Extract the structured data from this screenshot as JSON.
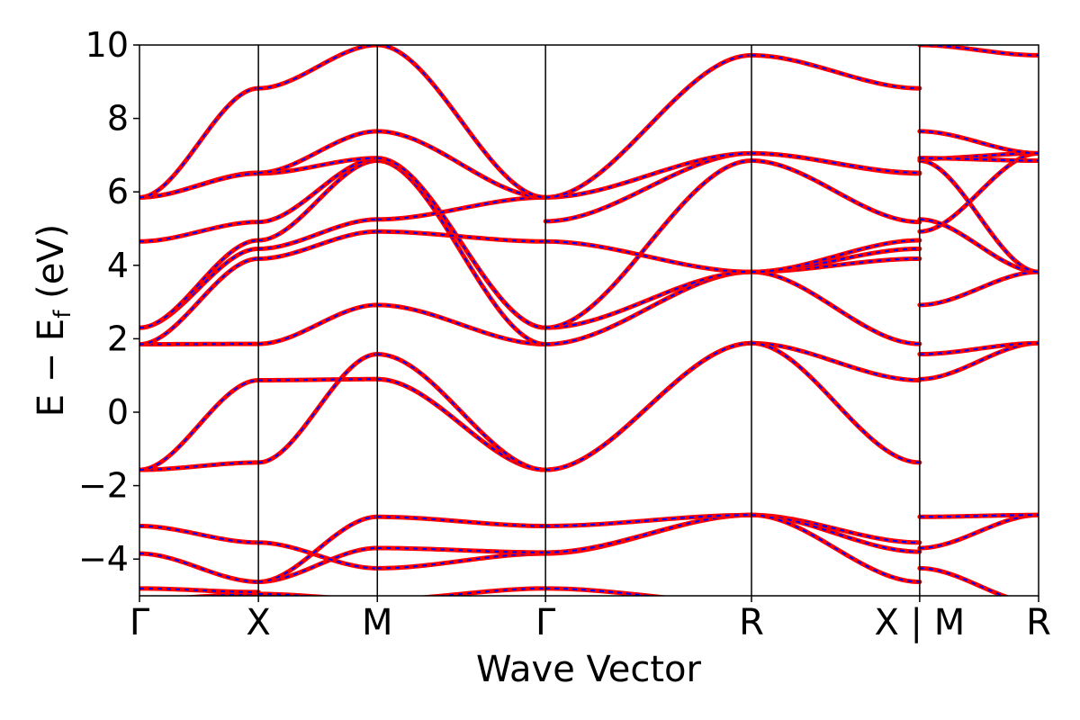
{
  "chart_data": {
    "type": "line",
    "title": "",
    "xlabel": "Wave Vector",
    "ylabel": "E − E",
    "ylabel_sub": "f",
    "ylabel_unit": " (eV)",
    "ylim": [
      -5,
      10
    ],
    "yticks": [
      -4,
      -2,
      0,
      2,
      4,
      6,
      8,
      10
    ],
    "ytick_labels": [
      "−4",
      "−2",
      "0",
      "2",
      "4",
      "6",
      "8",
      "10"
    ],
    "grid": false,
    "legend": "none",
    "line_colors": {
      "outer": "#ff0000",
      "inner_dashed": "#0000ff"
    },
    "kpoints": [
      {
        "label": "Γ",
        "pos": 0.0
      },
      {
        "label": "X",
        "pos": 0.5
      },
      {
        "label": "M",
        "pos": 1.0
      },
      {
        "label": "Γ",
        "pos": 1.7071
      },
      {
        "label": "R",
        "pos": 2.5731
      },
      {
        "label": "X | M",
        "pos": 3.2802
      },
      {
        "label": "R",
        "pos": 3.7802
      }
    ],
    "segments": [
      {
        "name": "Γ-X",
        "x_range": [
          0.0,
          0.5
        ],
        "bands": [
          [
            -5.1,
            -4.95
          ],
          [
            -4.8,
            -4.9
          ],
          [
            -3.85,
            -4.62
          ],
          [
            -3.1,
            -3.55
          ],
          [
            -1.57,
            -1.37
          ],
          [
            -1.57,
            0.87
          ],
          [
            1.85,
            1.86
          ],
          [
            1.85,
            4.18
          ],
          [
            2.3,
            4.45
          ],
          [
            2.3,
            4.68
          ],
          [
            4.65,
            5.18
          ],
          [
            5.85,
            6.52
          ],
          [
            5.85,
            6.5
          ],
          [
            5.85,
            8.82
          ]
        ]
      },
      {
        "name": "X-M",
        "x_range": [
          0.5,
          1.0
        ],
        "bands": [
          [
            -4.95,
            -5.1
          ],
          [
            -4.62,
            -3.7
          ],
          [
            -3.55,
            -4.25
          ],
          [
            -4.62,
            -2.85
          ],
          [
            0.87,
            0.9
          ],
          [
            -1.37,
            1.58
          ],
          [
            1.86,
            2.92
          ],
          [
            4.18,
            4.92
          ],
          [
            4.45,
            5.25
          ],
          [
            4.68,
            6.85
          ],
          [
            5.18,
            6.9
          ],
          [
            6.5,
            6.92
          ],
          [
            6.52,
            7.65
          ],
          [
            8.82,
            10.0
          ]
        ]
      },
      {
        "name": "M-Γ",
        "x_range": [
          1.0,
          1.7071
        ],
        "bands": [
          [
            -5.1,
            -4.8
          ],
          [
            -4.25,
            -3.85
          ],
          [
            -3.7,
            -3.82
          ],
          [
            -2.85,
            -3.1
          ],
          [
            0.9,
            -1.57
          ],
          [
            0.9,
            -1.57
          ],
          [
            1.58,
            -1.57
          ],
          [
            2.92,
            1.85
          ],
          [
            6.85,
            1.85
          ],
          [
            6.9,
            2.3
          ],
          [
            6.92,
            2.3
          ],
          [
            4.92,
            4.65
          ],
          [
            5.25,
            5.85
          ],
          [
            7.65,
            5.85
          ],
          [
            10.0,
            5.85
          ]
        ]
      },
      {
        "name": "Γ-R",
        "x_range": [
          1.7071,
          2.5731
        ],
        "bands": [
          [
            -4.8,
            -5.2
          ],
          [
            -3.85,
            -2.8
          ],
          [
            -3.82,
            -2.8
          ],
          [
            -3.1,
            -2.8
          ],
          [
            -1.57,
            1.88
          ],
          [
            -1.57,
            1.88
          ],
          [
            -1.57,
            1.88
          ],
          [
            1.85,
            3.82
          ],
          [
            2.3,
            3.82
          ],
          [
            2.3,
            6.85
          ],
          [
            4.65,
            3.82
          ],
          [
            5.2,
            7.05
          ],
          [
            5.85,
            7.05
          ],
          [
            5.85,
            9.72
          ]
        ]
      },
      {
        "name": "R-X",
        "x_range": [
          2.5731,
          3.2802
        ],
        "bands": [
          [
            -2.8,
            -3.55
          ],
          [
            -2.8,
            -3.8
          ],
          [
            -2.8,
            -4.62
          ],
          [
            1.88,
            0.87
          ],
          [
            1.88,
            -1.37
          ],
          [
            3.82,
            1.86
          ],
          [
            3.82,
            4.18
          ],
          [
            3.82,
            4.45
          ],
          [
            3.82,
            4.68
          ],
          [
            6.85,
            5.18
          ],
          [
            7.05,
            6.5
          ],
          [
            7.05,
            6.52
          ],
          [
            9.72,
            8.82
          ]
        ]
      },
      {
        "name": "M-R",
        "x_range": [
          3.2802,
          3.7802
        ],
        "bands": [
          [
            -4.25,
            -5.2
          ],
          [
            -3.7,
            -2.8
          ],
          [
            -2.85,
            -2.8
          ],
          [
            0.9,
            1.88
          ],
          [
            1.58,
            1.88
          ],
          [
            2.92,
            3.82
          ],
          [
            4.92,
            7.05
          ],
          [
            5.25,
            3.82
          ],
          [
            6.85,
            3.82
          ],
          [
            6.9,
            7.05
          ],
          [
            6.92,
            6.85
          ],
          [
            7.65,
            7.05
          ],
          [
            10.0,
            9.72
          ]
        ]
      }
    ]
  }
}
